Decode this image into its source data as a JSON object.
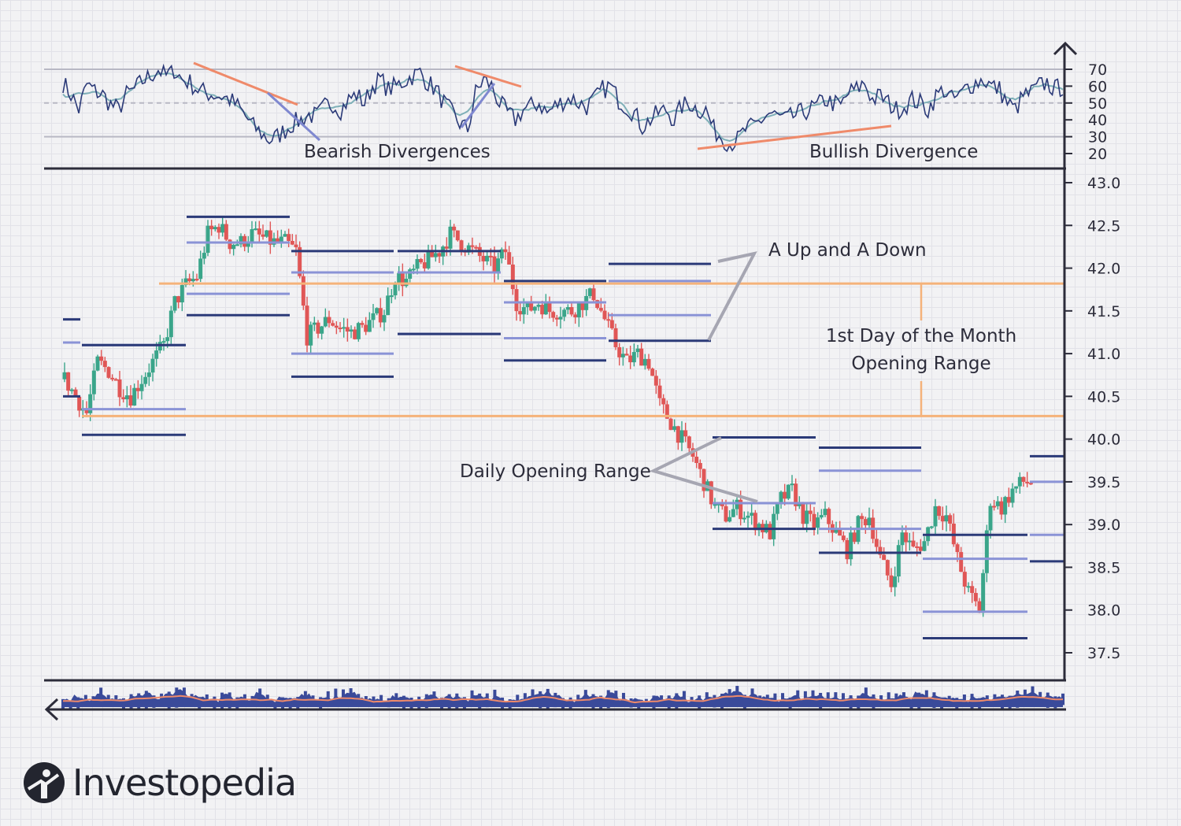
{
  "chart_data": [
    {
      "type": "line",
      "panel": "rsi",
      "y_ticks": [
        70,
        60,
        50,
        40,
        30,
        20
      ],
      "reference_lines": [
        70,
        50,
        30
      ],
      "ylim": [
        20,
        70
      ],
      "annotations": [
        "Bearish Divergences",
        "Bullish Divergence"
      ],
      "series": [
        {
          "values": [
            62,
            55,
            46,
            61,
            57,
            55,
            49,
            46,
            55,
            58,
            63,
            66,
            70,
            66,
            70,
            64,
            62,
            58,
            56,
            55,
            54,
            52,
            48,
            42,
            36,
            32,
            28,
            30,
            34,
            38,
            40,
            43,
            42,
            48,
            50,
            46,
            52,
            55,
            50,
            60,
            64,
            58,
            60,
            63,
            66,
            68,
            62,
            58,
            50,
            44,
            38,
            34,
            56,
            64,
            60,
            50,
            44,
            40,
            46,
            48,
            50,
            44,
            48,
            51,
            53,
            50,
            48,
            52,
            58,
            60,
            52,
            48,
            44,
            36,
            40,
            44,
            46,
            40,
            48,
            50,
            46,
            46,
            34,
            30,
            26,
            28,
            34,
            36,
            40,
            44,
            42,
            40,
            42,
            44,
            46,
            48,
            52,
            50,
            48,
            56,
            58,
            62,
            52,
            54,
            50,
            46,
            48,
            52,
            50,
            46,
            54,
            58,
            52,
            54,
            60,
            62,
            64,
            60,
            58,
            50,
            46,
            54,
            56,
            60,
            62,
            58,
            60
          ]
        }
      ]
    },
    {
      "type": "candlestick",
      "panel": "price",
      "y_ticks": [
        43.0,
        42.5,
        42.0,
        41.5,
        41.0,
        40.5,
        40.0,
        39.5,
        39.0,
        38.5,
        38.0,
        37.5
      ],
      "ylim": [
        37.2,
        43.15
      ],
      "annotations": [
        "A Up and A Down",
        "1st Day of the Month",
        "Opening Range",
        "Daily Opening Range"
      ],
      "close_path": [
        40.7,
        40.5,
        40.3,
        40.9,
        40.8,
        40.6,
        40.5,
        40.7,
        40.9,
        41.1,
        41.6,
        41.8,
        41.9,
        42.4,
        42.5,
        42.3,
        42.3,
        42.4,
        42.35,
        42.3,
        42.3,
        42.2,
        41.2,
        41.3,
        41.4,
        41.3,
        41.25,
        41.3,
        41.4,
        41.5,
        41.9,
        41.85,
        42.0,
        42.1,
        42.2,
        42.4,
        42.3,
        42.2,
        42.1,
        42.0,
        42.2,
        41.6,
        41.5,
        41.6,
        41.5,
        41.5,
        41.5,
        41.6,
        41.7,
        41.4,
        41.1,
        40.9,
        41.0,
        40.9,
        40.4,
        40.2,
        40.0,
        39.8,
        39.5,
        39.2,
        39.1,
        39.2,
        39.1,
        39.0,
        38.9,
        39.3,
        39.4,
        39.1,
        39.0,
        39.1,
        38.9,
        38.7,
        39.0,
        39.1,
        38.6,
        38.3,
        38.9,
        38.7,
        38.8,
        39.2,
        39.1,
        38.6,
        38.2,
        38.0,
        39.3,
        39.2,
        39.4,
        39.5
      ],
      "opening_ranges": [
        {
          "high": 41.1,
          "low": 40.35,
          "target_high": 41.1,
          "target_low": 40.05
        },
        {
          "high": 42.3,
          "low": 41.7,
          "target_high": 42.6,
          "target_low": 41.45
        },
        {
          "high": 41.95,
          "low": 41.0,
          "target_high": 42.2,
          "target_low": 40.73
        },
        {
          "high": 41.95,
          "low": 41.23,
          "target_high": 42.2,
          "target_low": 41.23
        },
        {
          "high": 41.6,
          "low": 41.18,
          "target_high": 41.85,
          "target_low": 40.92
        },
        {
          "high": 41.85,
          "low": 41.45,
          "target_high": 42.05,
          "target_low": 41.15
        },
        {
          "high": 40.02,
          "low": 39.25,
          "target_high": 40.02,
          "target_low": 38.95
        },
        {
          "high": 39.63,
          "low": 38.95,
          "target_high": 39.9,
          "target_low": 38.67
        },
        {
          "high": 38.6,
          "low": 37.98,
          "target_high": 38.88,
          "target_low": 37.67
        },
        {
          "high": 39.5,
          "low": 38.88,
          "target_high": 39.8,
          "target_low": 38.57
        }
      ],
      "month_opening_range": {
        "high": 41.82,
        "low": 40.27
      }
    },
    {
      "type": "area",
      "panel": "volume",
      "values": [
        3,
        5,
        2,
        6,
        4,
        3,
        5,
        7,
        4,
        6,
        9,
        5,
        4,
        3,
        6,
        5,
        4,
        7,
        3,
        5,
        4,
        6,
        3,
        4,
        5,
        8,
        4,
        3,
        2,
        5,
        4,
        3,
        6,
        4,
        5,
        3,
        7,
        4,
        5,
        3,
        4,
        6,
        8,
        5,
        4,
        3,
        6,
        5,
        7,
        4,
        3,
        2,
        5,
        4,
        6,
        3,
        4,
        5,
        7,
        9,
        6,
        5,
        4,
        3,
        5,
        4,
        6,
        3,
        4,
        5,
        6,
        4,
        3,
        5,
        4,
        7,
        5,
        6,
        4,
        3,
        5,
        4,
        6,
        5,
        7,
        8,
        6,
        5,
        4
      ]
    }
  ],
  "labels": {
    "rsi_ticks": [
      "70",
      "60",
      "50",
      "40",
      "30",
      "20"
    ],
    "price_ticks": [
      "43.0",
      "42.5",
      "42.0",
      "41.5",
      "41.0",
      "40.5",
      "40.0",
      "39.5",
      "39.0",
      "38.5",
      "38.0",
      "37.5"
    ],
    "bearish": "Bearish Divergences",
    "bullish": "Bullish Divergence",
    "up_down": "A Up and A Down",
    "month_line1": "1st Day of the Month",
    "month_line2": "Opening Range",
    "daily": "Daily Opening Range"
  },
  "brand": {
    "name": "Investopedia",
    "logo_icon": "investopedia-logo-icon"
  },
  "colors": {
    "rsi_main": "#2b3a78",
    "rsi_signal": "#7fb0b8",
    "reference": "#b8b8c4",
    "divergence_bear": "#ef8a6a",
    "divergence_bull": "#ef8a6a",
    "divergence_blue": "#7f88d0",
    "up_candle": "#3aa58a",
    "down_candle": "#e05656",
    "range_dark": "#2b3a78",
    "range_light": "#8a93d6",
    "month_range": "#f5b27a",
    "annotation_pointer": "#a6a6b2",
    "volume_fill": "#3a4a9a",
    "volume_line": "#ef8a6a",
    "axis": "#2c2c3a"
  }
}
